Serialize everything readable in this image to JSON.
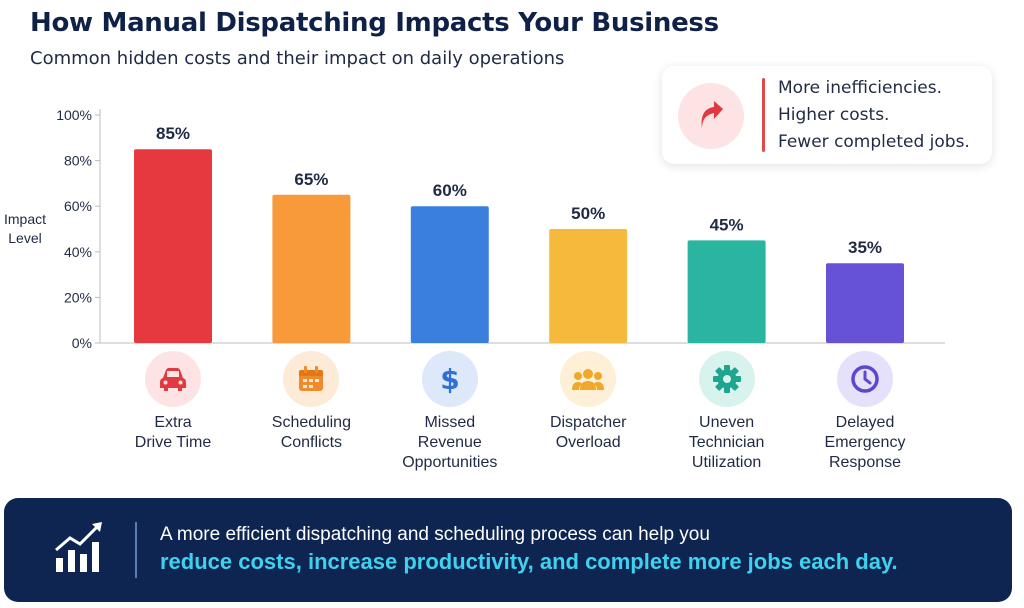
{
  "header": {
    "title": "How Manual Dispatching Impacts Your Business",
    "subtitle": "Common hidden costs and their impact on daily operations"
  },
  "callout": {
    "icon": "trend-up-arrow-icon",
    "lines": [
      "More inefficiencies.",
      "Higher costs.",
      "Fewer completed jobs."
    ]
  },
  "chart_data": {
    "type": "bar",
    "title": "How Manual Dispatching Impacts Your Business",
    "ylabel": "Impact Level",
    "xlabel": "",
    "ylim": [
      0,
      100
    ],
    "yticks": [
      0,
      20,
      40,
      60,
      80,
      100
    ],
    "ytick_labels": [
      "0%",
      "20%",
      "40%",
      "60%",
      "80%",
      "100%"
    ],
    "grid": false,
    "categories": [
      "Extra Drive Time",
      "Scheduling Conflicts",
      "Missed Revenue Opportunities",
      "Dispatcher Overload",
      "Uneven Technician Utilization",
      "Delayed Emergency Response"
    ],
    "values": [
      85,
      65,
      60,
      50,
      45,
      35
    ],
    "data_labels": [
      "85%",
      "65%",
      "60%",
      "50%",
      "45%",
      "35%"
    ],
    "colors": [
      "#e5393f",
      "#f99a3a",
      "#3a7fde",
      "#f5b93b",
      "#2ab5a0",
      "#6552d6"
    ]
  },
  "categories_display": [
    {
      "label": "Extra\nDrive Time",
      "icon": "car-icon",
      "icon_bg": "#fde3e3",
      "icon_color": "#e0393f"
    },
    {
      "label": "Scheduling\nConflicts",
      "icon": "calendar-icon",
      "icon_bg": "#fdebd8",
      "icon_color": "#f08a2c"
    },
    {
      "label": "Missed\nRevenue\nOpportunities",
      "icon": "dollar-icon",
      "icon_bg": "#dde8fb",
      "icon_color": "#2f6fd6"
    },
    {
      "label": "Dispatcher\nOverload",
      "icon": "people-group-icon",
      "icon_bg": "#fdf0d6",
      "icon_color": "#f0a72a"
    },
    {
      "label": "Uneven\nTechnician\nUtilization",
      "icon": "gear-icon",
      "icon_bg": "#d8f2ed",
      "icon_color": "#1ea58f"
    },
    {
      "label": "Delayed\nEmergency\nResponse",
      "icon": "clock-icon",
      "icon_bg": "#e6e1fb",
      "icon_color": "#5b48cf"
    }
  ],
  "footer": {
    "icon": "growth-chart-icon",
    "line1": "A more efficient dispatching and scheduling process can help you",
    "line2": "reduce costs, increase productivity, and complete more jobs each day."
  }
}
